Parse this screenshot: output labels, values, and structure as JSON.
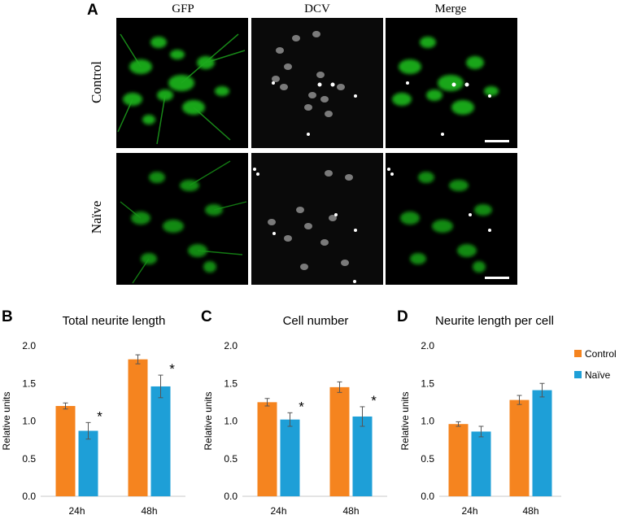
{
  "figure": {
    "panel_a": {
      "letter": "A",
      "columns": [
        "GFP",
        "DCV",
        "Merge"
      ],
      "rows": [
        "Control",
        "Naïve"
      ]
    },
    "colors": {
      "control": "#F5841F",
      "naive": "#1E9FD7",
      "gfp": "#2ec92e"
    }
  },
  "chart_data": [
    {
      "letter": "B",
      "type": "bar",
      "title": "Total neurite length",
      "ylabel": "Relative units",
      "categories": [
        "24h",
        "48h"
      ],
      "ylim": [
        0,
        2.0
      ],
      "yticks": [
        "0.0",
        "0.5",
        "1.0",
        "1.5",
        "2.0"
      ],
      "series": [
        {
          "name": "Control",
          "values": [
            1.2,
            1.82
          ],
          "errors": [
            0.04,
            0.06
          ]
        },
        {
          "name": "Naïve",
          "values": [
            0.87,
            1.46
          ],
          "errors": [
            0.11,
            0.15
          ]
        }
      ],
      "annotations": [
        "*",
        "*"
      ]
    },
    {
      "letter": "C",
      "type": "bar",
      "title": "Cell number",
      "ylabel": "Relative units",
      "categories": [
        "24h",
        "48h"
      ],
      "ylim": [
        0,
        2.0
      ],
      "yticks": [
        "0.0",
        "0.5",
        "1.0",
        "1.5",
        "2.0"
      ],
      "series": [
        {
          "name": "Control",
          "values": [
            1.25,
            1.45
          ],
          "errors": [
            0.05,
            0.07
          ]
        },
        {
          "name": "Naïve",
          "values": [
            1.02,
            1.06
          ],
          "errors": [
            0.09,
            0.13
          ]
        }
      ],
      "annotations": [
        "*",
        "*"
      ]
    },
    {
      "letter": "D",
      "type": "bar",
      "title": "Neurite length per cell",
      "ylabel": "Relative units",
      "categories": [
        "24h",
        "48h"
      ],
      "ylim": [
        0,
        2.0
      ],
      "yticks": [
        "0.0",
        "0.5",
        "1.0",
        "1.5",
        "2.0"
      ],
      "series": [
        {
          "name": "Control",
          "values": [
            0.96,
            1.28
          ],
          "errors": [
            0.03,
            0.06
          ]
        },
        {
          "name": "Naïve",
          "values": [
            0.86,
            1.41
          ],
          "errors": [
            0.07,
            0.09
          ]
        }
      ],
      "annotations": [],
      "legend": {
        "position": "right",
        "entries": [
          "Control",
          "Naïve"
        ]
      }
    }
  ]
}
